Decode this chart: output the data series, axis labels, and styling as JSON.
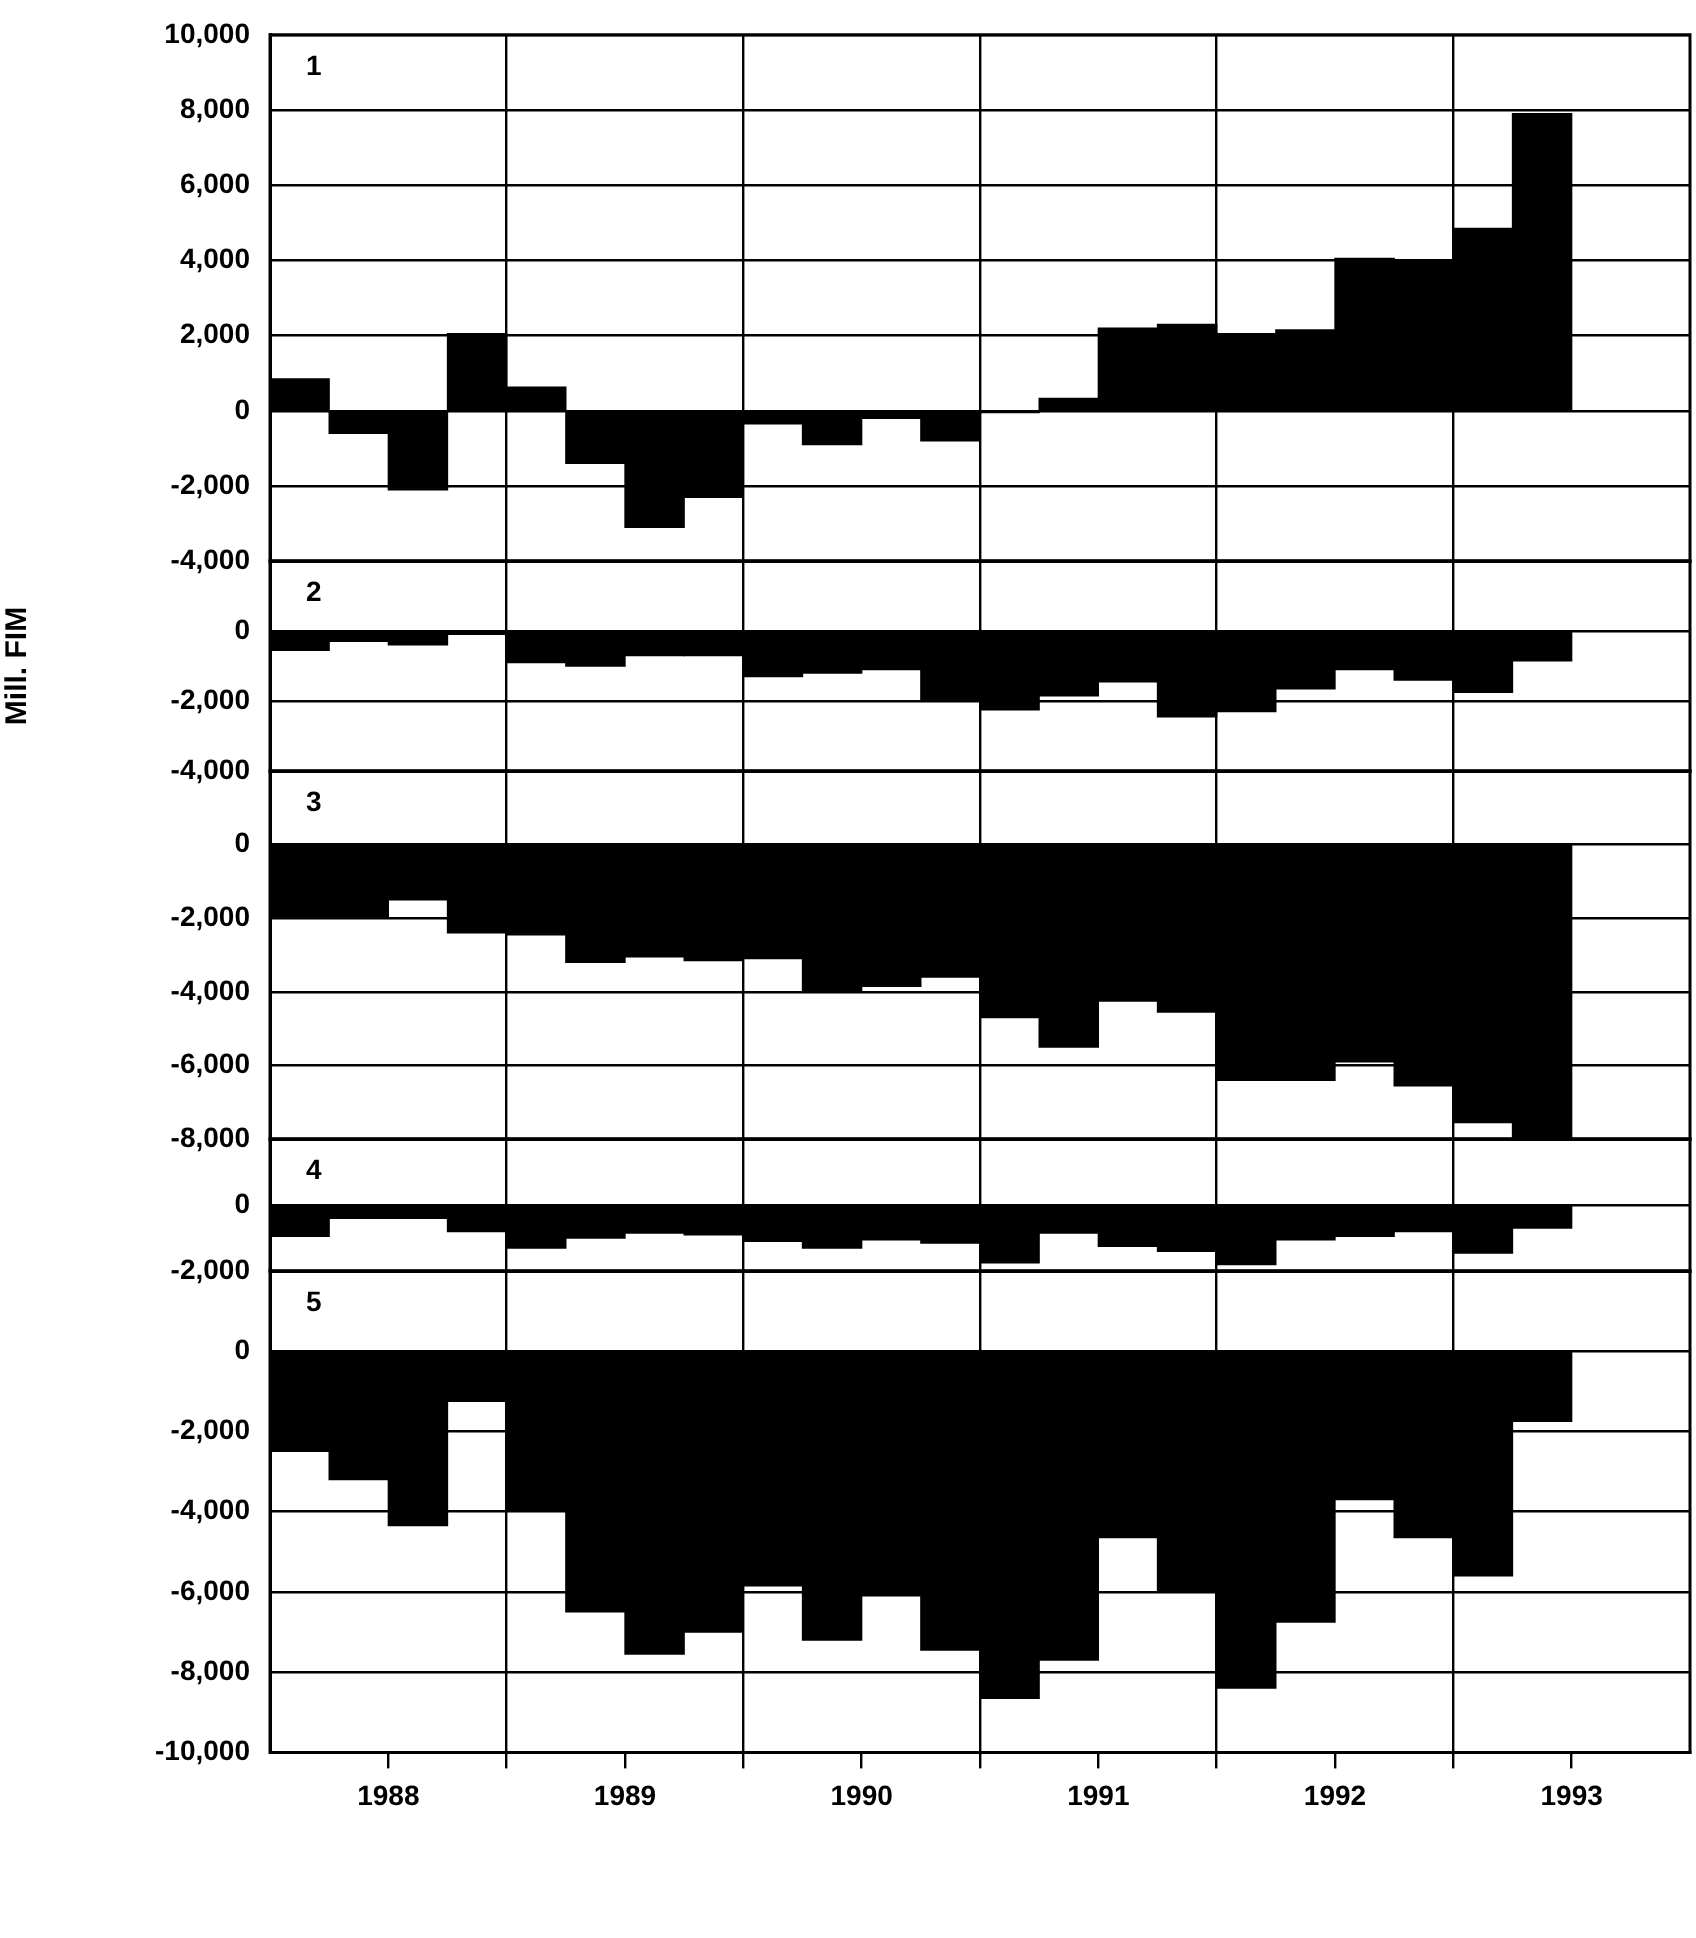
{
  "chart_data": [
    {
      "type": "bar",
      "annotations": [
        "1"
      ],
      "color": "#000000",
      "grid": true,
      "tick_labels": "y",
      "x": [
        1988.125,
        1988.375,
        1988.625,
        1988.875,
        1989.125,
        1989.375,
        1989.625,
        1989.875,
        1990.125,
        1990.375,
        1990.625,
        1990.875,
        1991.125,
        1991.375,
        1991.625,
        1991.875,
        1992.125,
        1992.375,
        1992.625,
        1992.875,
        1993.125,
        1993.375
      ],
      "values": [
        850,
        -600,
        -2100,
        2050,
        630,
        -1400,
        -3100,
        -2300,
        -350,
        -900,
        -200,
        -800,
        -50,
        330,
        2200,
        2300,
        2050,
        2150,
        4050,
        4000,
        4850,
        7900
      ],
      "xlim": [
        1988,
        1994
      ],
      "xticks": [
        {
          "value": 1989,
          "label": null
        },
        {
          "value": 1990,
          "label": null
        },
        {
          "value": 1991,
          "label": null
        },
        {
          "value": 1992,
          "label": null
        },
        {
          "value": 1993,
          "label": null
        }
      ],
      "ylim": [
        -4000,
        10000
      ],
      "yticks": [
        {
          "value": -4000,
          "label": "-4,000"
        },
        {
          "value": -2000,
          "label": "-2,000"
        },
        {
          "value": 0,
          "label": "0"
        },
        {
          "value": 2000,
          "label": "2,000"
        },
        {
          "value": 4000,
          "label": "4,000"
        },
        {
          "value": 6000,
          "label": "6,000"
        },
        {
          "value": 8000,
          "label": "8,000"
        },
        {
          "value": 10000,
          "label": "10,000"
        }
      ]
    },
    {
      "type": "bar",
      "annotations": [
        "2"
      ],
      "ylabel": "Mill. FIM",
      "color": "#000000",
      "grid": true,
      "tick_labels": "y",
      "x": [
        1988.125,
        1988.375,
        1988.625,
        1988.875,
        1989.125,
        1989.375,
        1989.625,
        1989.875,
        1990.125,
        1990.375,
        1990.625,
        1990.875,
        1991.125,
        1991.375,
        1991.625,
        1991.875,
        1992.125,
        1992.375,
        1992.625,
        1992.875,
        1993.125,
        1993.375
      ],
      "values": [
        -550,
        -300,
        -400,
        -100,
        -900,
        -1000,
        -700,
        -700,
        -1300,
        -1200,
        -1100,
        -2000,
        -2250,
        -1850,
        -1450,
        -2450,
        -2300,
        -1650,
        -1100,
        -1400,
        -1750,
        -850
      ],
      "xlim": [
        1988,
        1994
      ],
      "xticks": [
        {
          "value": 1989,
          "label": null
        },
        {
          "value": 1990,
          "label": null
        },
        {
          "value": 1991,
          "label": null
        },
        {
          "value": 1992,
          "label": null
        },
        {
          "value": 1993,
          "label": null
        }
      ],
      "ylim": [
        -4000,
        2000
      ],
      "yticks": [
        {
          "value": -4000,
          "label": "-4,000"
        },
        {
          "value": -2000,
          "label": "-2,000"
        },
        {
          "value": 0,
          "label": "0"
        }
      ]
    },
    {
      "type": "bar",
      "annotations": [
        "3"
      ],
      "color": "#000000",
      "grid": true,
      "tick_labels": "y",
      "x": [
        1988.125,
        1988.375,
        1988.625,
        1988.875,
        1989.125,
        1989.375,
        1989.625,
        1989.875,
        1990.125,
        1990.375,
        1990.625,
        1990.875,
        1991.125,
        1991.375,
        1991.625,
        1991.875,
        1992.125,
        1992.375,
        1992.625,
        1992.875,
        1993.125,
        1993.375
      ],
      "values": [
        -2000,
        -1950,
        -1500,
        -2400,
        -2450,
        -3200,
        -3050,
        -3150,
        -3100,
        -4000,
        -3850,
        -3600,
        -4700,
        -5500,
        -4250,
        -4550,
        -6400,
        -6400,
        -5900,
        -6550,
        -7550,
        -8000
      ],
      "xlim": [
        1988,
        1994
      ],
      "xticks": [
        {
          "value": 1989,
          "label": null
        },
        {
          "value": 1990,
          "label": null
        },
        {
          "value": 1991,
          "label": null
        },
        {
          "value": 1992,
          "label": null
        },
        {
          "value": 1993,
          "label": null
        }
      ],
      "ylim": [
        -8000,
        2000
      ],
      "yticks": [
        {
          "value": -8000,
          "label": "-8,000"
        },
        {
          "value": -6000,
          "label": "-6,000"
        },
        {
          "value": -4000,
          "label": "-4,000"
        },
        {
          "value": -2000,
          "label": "-2,000"
        },
        {
          "value": 0,
          "label": "0"
        }
      ]
    },
    {
      "type": "bar",
      "annotations": [
        "4"
      ],
      "color": "#000000",
      "grid": true,
      "tick_labels": "y",
      "x": [
        1988.125,
        1988.375,
        1988.625,
        1988.875,
        1989.125,
        1989.375,
        1989.625,
        1989.875,
        1990.125,
        1990.375,
        1990.625,
        1990.875,
        1991.125,
        1991.375,
        1991.625,
        1991.875,
        1992.125,
        1992.375,
        1992.625,
        1992.875,
        1993.125,
        1993.375
      ],
      "values": [
        -950,
        -400,
        -400,
        -800,
        -1300,
        -1000,
        -850,
        -900,
        -1100,
        -1300,
        -1050,
        -1150,
        -1750,
        -850,
        -1250,
        -1400,
        -1800,
        -1050,
        -950,
        -800,
        -1450,
        -700
      ],
      "xlim": [
        1988,
        1994
      ],
      "xticks": [
        {
          "value": 1989,
          "label": null
        },
        {
          "value": 1990,
          "label": null
        },
        {
          "value": 1991,
          "label": null
        },
        {
          "value": 1992,
          "label": null
        },
        {
          "value": 1993,
          "label": null
        }
      ],
      "ylim": [
        -2000,
        2000
      ],
      "yticks": [
        {
          "value": -2000,
          "label": "-2,000"
        },
        {
          "value": 0,
          "label": "0"
        }
      ]
    },
    {
      "type": "bar",
      "annotations": [
        "5"
      ],
      "color": "#000000",
      "grid": true,
      "x": [
        1988.125,
        1988.375,
        1988.625,
        1988.875,
        1989.125,
        1989.375,
        1989.625,
        1989.875,
        1990.125,
        1990.375,
        1990.625,
        1990.875,
        1991.125,
        1991.375,
        1991.625,
        1991.875,
        1992.125,
        1992.375,
        1992.625,
        1992.875,
        1993.125,
        1993.375
      ],
      "values": [
        -2500,
        -3200,
        -4350,
        -1250,
        -3950,
        -6500,
        -7550,
        -7000,
        -5850,
        -7200,
        -6100,
        -7450,
        -8650,
        -7700,
        -4650,
        -6000,
        -8400,
        -6750,
        -3700,
        -4650,
        -5600,
        -1750
      ],
      "xlim": [
        1988,
        1994
      ],
      "xticks": [
        {
          "value": 1988.5,
          "label": "1988"
        },
        {
          "value": 1989,
          "label": null
        },
        {
          "value": 1989.5,
          "label": "1989"
        },
        {
          "value": 1990,
          "label": null
        },
        {
          "value": 1990.5,
          "label": "1990"
        },
        {
          "value": 1991,
          "label": null
        },
        {
          "value": 1991.5,
          "label": "1991"
        },
        {
          "value": 1992,
          "label": null
        },
        {
          "value": 1992.5,
          "label": "1992"
        },
        {
          "value": 1993,
          "label": null
        },
        {
          "value": 1993.5,
          "label": "1993"
        }
      ],
      "ylim": [
        -10000,
        2000
      ],
      "yticks": [
        {
          "value": -10000,
          "label": "-10,000"
        },
        {
          "value": -8000,
          "label": "-8,000"
        },
        {
          "value": -6000,
          "label": "-6,000"
        },
        {
          "value": -4000,
          "label": "-4,000"
        },
        {
          "value": -2000,
          "label": "-2,000"
        },
        {
          "value": 0,
          "label": "0"
        }
      ]
    }
  ]
}
